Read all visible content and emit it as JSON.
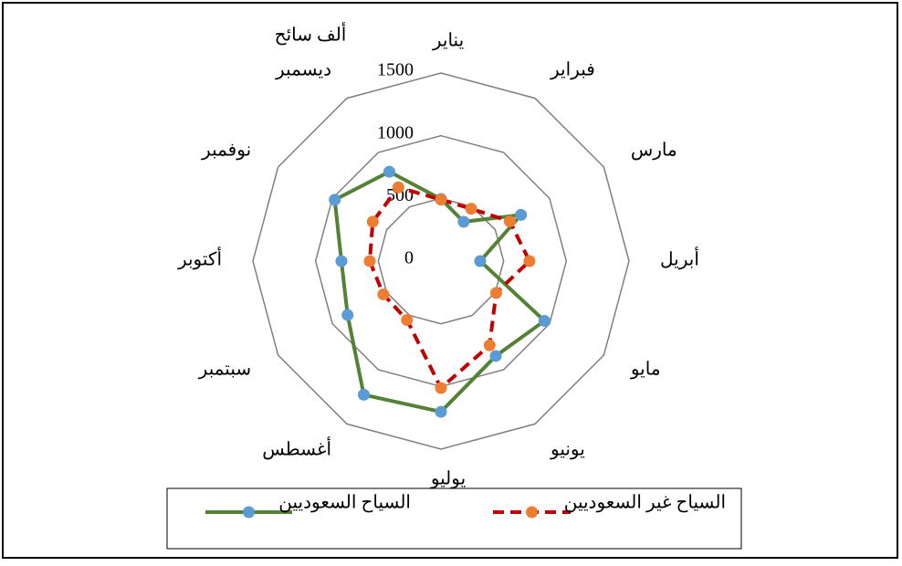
{
  "chart_data": {
    "type": "radar",
    "unit_label": "ألف سائح",
    "categories": [
      "يناير",
      "فبراير",
      "مارس",
      "أبريل",
      "مايو",
      "يونيو",
      "يوليو",
      "أغسطس",
      "سبتمبر",
      "أكتوبر",
      "نوفمبر",
      "ديسمبر"
    ],
    "series": [
      {
        "name": "السياح السعوديين",
        "color": "#548235",
        "marker_color": "#5b9bd5",
        "dash": false,
        "values": [
          495,
          362,
          737,
          313,
          953,
          874,
          1202,
          1231,
          860,
          794,
          978,
          823
        ]
      },
      {
        "name": "السياح غير السعوديين",
        "color": "#c00000",
        "marker_color": "#ed7d31",
        "dash": true,
        "values": [
          490,
          482,
          634,
          706,
          508,
          776,
          1012,
          542,
          531,
          568,
          628,
          679
        ]
      }
    ],
    "ylim": [
      0,
      1500
    ],
    "yticks": [
      0,
      500,
      1000,
      1500
    ],
    "grid": true,
    "legend": "bottom"
  }
}
